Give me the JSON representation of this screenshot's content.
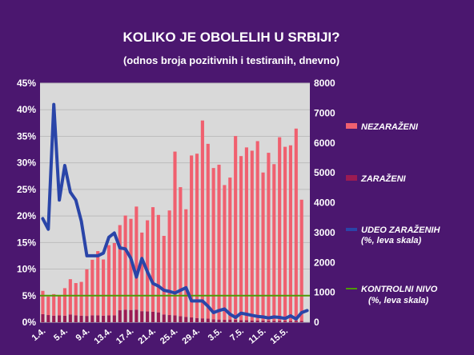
{
  "chart_data": {
    "type": "bar",
    "title": "KOLIKO JE OBOLELIH U SRBIJI?",
    "subtitle": "(odnos broja pozitivnih i testiranih, dnevno)",
    "left_axis": {
      "min": 0,
      "max": 45,
      "step": 5,
      "suffix": "%",
      "ticks": [
        "0%",
        "5%",
        "10%",
        "15%",
        "20%",
        "25%",
        "30%",
        "35%",
        "40%",
        "45%"
      ]
    },
    "right_axis": {
      "min": 0,
      "max": 8000,
      "step": 1000,
      "ticks": [
        "0",
        "1000",
        "2000",
        "3000",
        "4000",
        "5000",
        "6000",
        "7000",
        "8000"
      ]
    },
    "x_tick_labels": [
      "1.4.",
      "5.4.",
      "9.4.",
      "13.4.",
      "17.4.",
      "21.4.",
      "25.4.",
      "29.4.",
      "3.5.",
      "7.5.",
      "11.5.",
      "15.5."
    ],
    "x_tick_every": 4,
    "days": 49,
    "grid": true,
    "legend_position": "right",
    "series": [
      {
        "name": "NEZARAŽENI",
        "type": "bar",
        "axis": "right",
        "color": "#f0606f",
        "values": [
          780,
          620,
          720,
          640,
          920,
          1180,
          1080,
          1130,
          1560,
          1860,
          2150,
          1880,
          2350,
          2420,
          2850,
          3150,
          3050,
          3450,
          2630,
          3050,
          3500,
          3260,
          2630,
          3500,
          5480,
          4320,
          3600,
          5420,
          5500,
          6620,
          5850,
          5060,
          5180,
          4510,
          4750,
          6150,
          5490,
          5780,
          5680,
          6000,
          4950,
          5620,
          5240,
          6140,
          5830,
          5880,
          6440,
          4060,
          0
        ],
        "stacked_below": true
      },
      {
        "name": "ZARAŽENI",
        "type": "bar",
        "axis": "right",
        "color": "#9b1b52",
        "values": [
          270,
          240,
          220,
          230,
          220,
          260,
          230,
          220,
          210,
          230,
          230,
          220,
          230,
          230,
          400,
          420,
          410,
          420,
          370,
          360,
          350,
          330,
          260,
          240,
          230,
          200,
          180,
          160,
          140,
          130,
          120,
          100,
          90,
          80,
          90,
          80,
          70,
          70,
          60,
          60,
          60,
          50,
          50,
          50,
          40,
          40,
          40,
          40,
          0
        ]
      },
      {
        "name": "UDEO ZARAŽENIH",
        "sub": "(%, leva skala)",
        "type": "line",
        "axis": "left",
        "color": "#2a45a8",
        "values": [
          19.5,
          17.5,
          41,
          23,
          29.5,
          24.5,
          23,
          19,
          12.5,
          12.5,
          12.5,
          13,
          16,
          16.8,
          14,
          13.8,
          12,
          8.5,
          12,
          9.5,
          7.3,
          6.8,
          6,
          5.8,
          5.5,
          6,
          6.5,
          4,
          4,
          4,
          3,
          1.8,
          2.2,
          2.5,
          1.5,
          0.9,
          1.7,
          1.5,
          1.3,
          1.1,
          1.0,
          0.8,
          1.0,
          0.9,
          0.7,
          1.2,
          0.6,
          1.8,
          2.2
        ]
      },
      {
        "name": "KONTROLNI NIVO",
        "sub": "(%, leva skala)",
        "type": "line",
        "axis": "left",
        "color": "#4e9a06",
        "values_constant": 5
      }
    ]
  }
}
